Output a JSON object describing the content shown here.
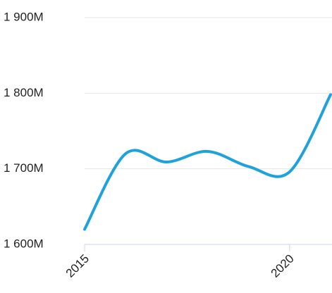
{
  "chart_data": {
    "type": "line",
    "x": [
      2015,
      2016,
      2017,
      2018,
      2019,
      2020,
      2021
    ],
    "series": [
      {
        "color": "#1ea2dc",
        "values": [
          1620,
          1720,
          1709,
          1723,
          1703,
          1696,
          1798
        ]
      }
    ],
    "xlim": [
      2015,
      2021
    ],
    "xticks": [
      2015,
      2020
    ],
    "ylim": [
      1600,
      1900
    ],
    "yticks": [
      {
        "value": 1600,
        "label": "1 600M"
      },
      {
        "value": 1700,
        "label": "1 700M"
      },
      {
        "value": 1800,
        "label": "1 800M"
      },
      {
        "value": 1900,
        "label": "1 900M"
      }
    ],
    "grid": true
  }
}
